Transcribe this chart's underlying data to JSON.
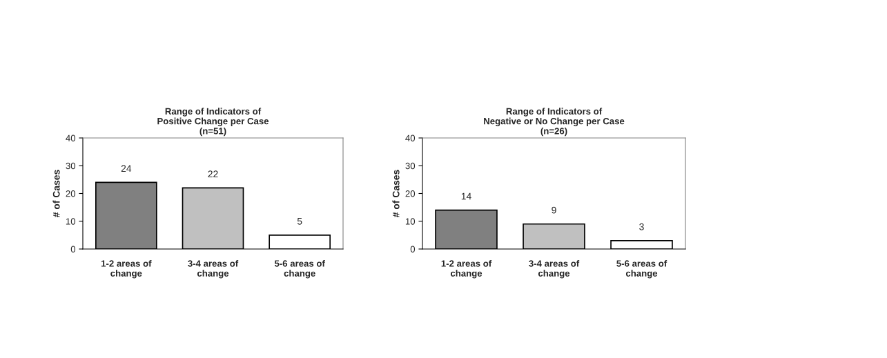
{
  "chart_data": [
    {
      "type": "bar",
      "title": "Range of Indicators of\nPositive Change per Case\n(n=51)",
      "ylabel": "# of Cases",
      "categories": [
        "1-2 areas of\nchange",
        "3-4 areas of\nchange",
        "5-6 areas of\nchange"
      ],
      "values": [
        24,
        22,
        5
      ],
      "colors": [
        "#808080",
        "#c0c0c0",
        "#ffffff"
      ],
      "ylim": [
        0,
        40
      ],
      "yticks": [
        0,
        10,
        20,
        30,
        40
      ],
      "data_labels": true,
      "grid": false,
      "legend": false
    },
    {
      "type": "bar",
      "title": "Range of Indicators of\nNegative or No Change per Case\n(n=26)",
      "ylabel": "# of Cases",
      "categories": [
        "1-2 areas of\nchange",
        "3-4 areas of\nchange",
        "5-6 areas of\nchange"
      ],
      "values": [
        14,
        9,
        3
      ],
      "colors": [
        "#808080",
        "#c0c0c0",
        "#ffffff"
      ],
      "ylim": [
        0,
        40
      ],
      "yticks": [
        0,
        10,
        20,
        30,
        40
      ],
      "data_labels": true,
      "grid": false,
      "legend": false
    }
  ]
}
